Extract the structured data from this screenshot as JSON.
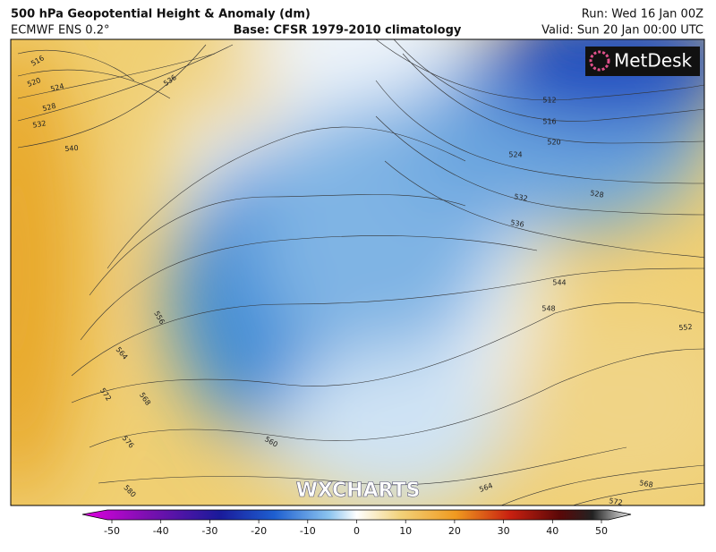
{
  "header": {
    "title": "500 hPa Geopotential Height & Anomaly (dm)",
    "model": "ECMWF ENS 0.2°",
    "base": "Base: CFSR 1979-2010 climatology",
    "run": "Run: Wed 16 Jan 00Z",
    "valid": "Valid: Sun 20 Jan 00:00 UTC"
  },
  "brand": "MetDesk",
  "watermark": "WXCHARTS",
  "contour_labels": [
    516,
    520,
    524,
    528,
    532,
    536,
    540,
    556,
    564,
    572,
    568,
    576,
    580,
    560,
    564,
    568,
    572,
    512,
    516,
    520,
    524,
    528,
    532,
    536,
    544,
    548,
    552
  ],
  "colorbar": {
    "ticks": [
      -50,
      -40,
      -30,
      -20,
      -10,
      0,
      10,
      20,
      30,
      40,
      50
    ]
  }
}
